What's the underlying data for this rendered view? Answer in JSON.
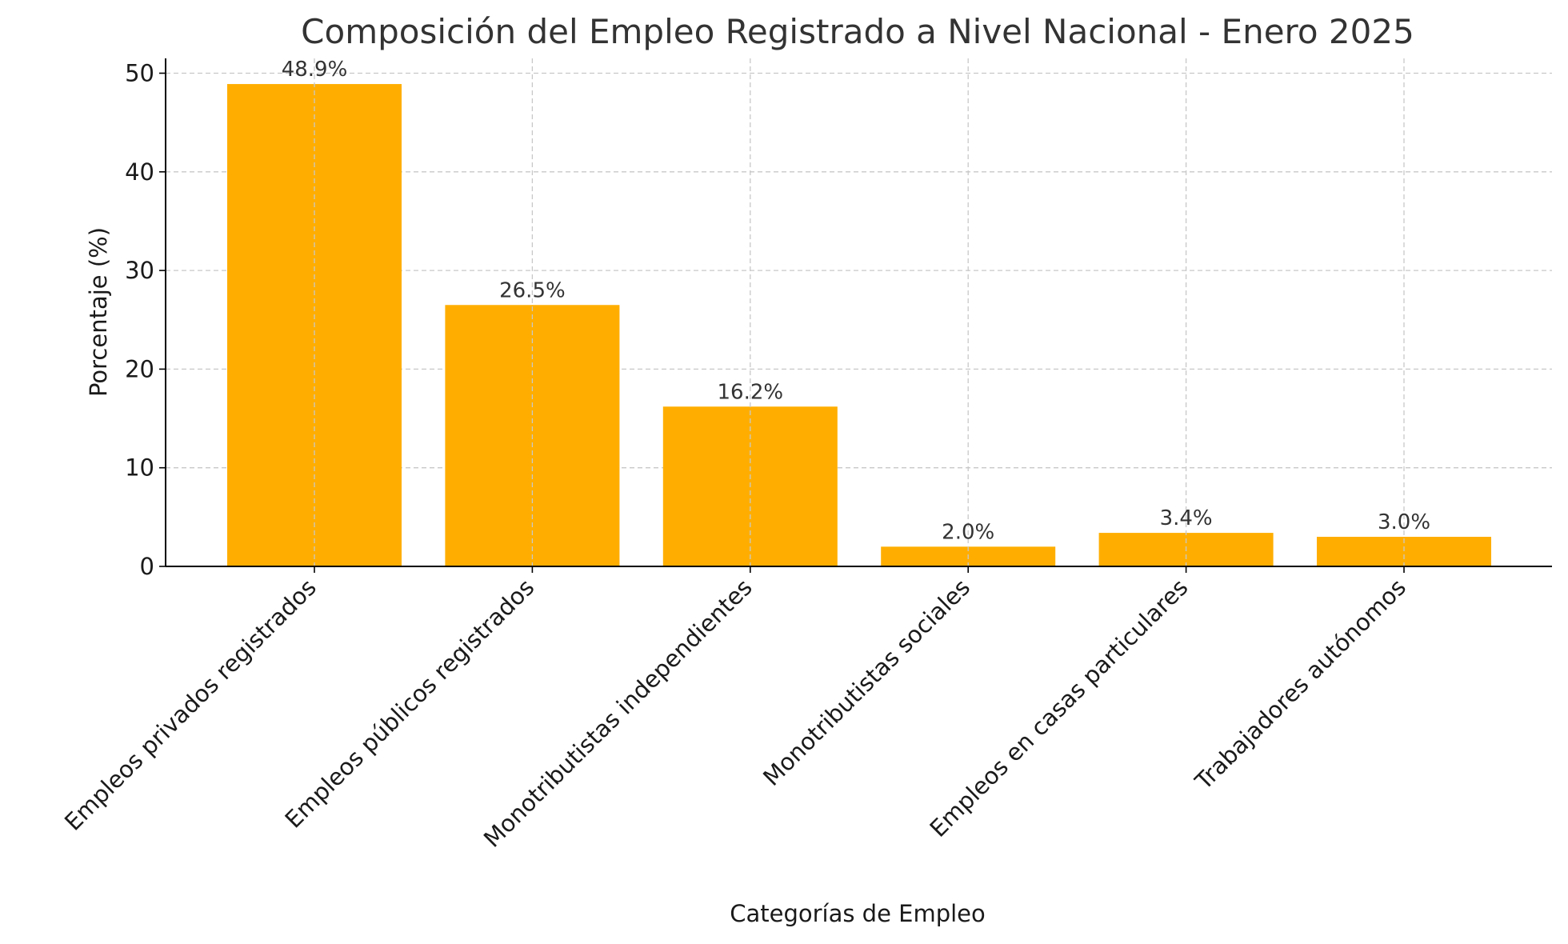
{
  "chart_data": {
    "type": "bar",
    "title": "Composición del Empleo Registrado a Nivel Nacional - Enero 2025",
    "xlabel": "Categorías de Empleo",
    "ylabel": "Porcentaje (%)",
    "categories": [
      "Empleos privados registrados",
      "Empleos públicos registrados",
      "Monotributistas independientes",
      "Monotributistas sociales",
      "Empleos en casas particulares",
      "Trabajadores autónomos"
    ],
    "values": [
      48.9,
      26.5,
      16.2,
      2.0,
      3.4,
      3.0
    ],
    "data_labels": [
      "48.9%",
      "26.5%",
      "16.2%",
      "2.0%",
      "3.4%",
      "3.0%"
    ],
    "ylim": [
      0,
      51.5
    ],
    "yticks": [
      0,
      10,
      20,
      30,
      40,
      50
    ],
    "grid": true,
    "bar_color": "#FFAE00"
  }
}
